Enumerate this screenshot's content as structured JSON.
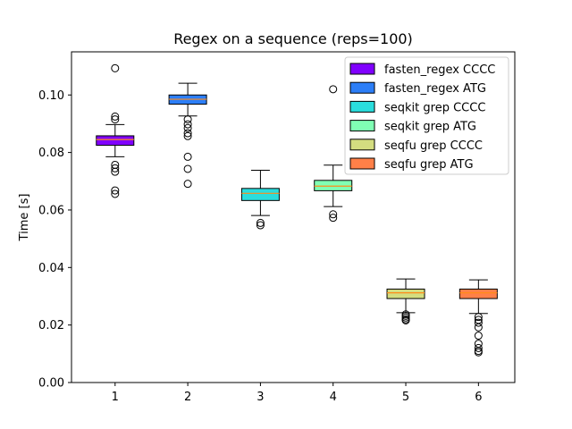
{
  "chart_data": {
    "type": "box",
    "title": "Regex on a sequence (reps=100)",
    "xlabel": "",
    "ylabel": "Time [s]",
    "ylim": [
      0,
      0.115
    ],
    "xlim": [
      0.4,
      6.5
    ],
    "x_ticks": [
      "1",
      "2",
      "3",
      "4",
      "5",
      "6"
    ],
    "y_ticks": [
      "0.00",
      "0.02",
      "0.04",
      "0.06",
      "0.08",
      "0.10"
    ],
    "y_tick_values": [
      0,
      0.02,
      0.04,
      0.06,
      0.08,
      0.1
    ],
    "legend_position": "top-right",
    "series": [
      {
        "name": "fasten_regex CCCC",
        "x": 1,
        "color": "#8000ff",
        "median": 0.0845,
        "q1": 0.0825,
        "q3": 0.0858,
        "whisker_low": 0.0785,
        "whisker_high": 0.0897,
        "outliers": [
          0.1093,
          0.0925,
          0.0915,
          0.0757,
          0.0745,
          0.0733,
          0.0668,
          0.0656
        ]
      },
      {
        "name": "fasten_regex ATG",
        "x": 2,
        "color": "#2c7ef7",
        "median": 0.0985,
        "q1": 0.0968,
        "q3": 0.1,
        "whisker_low": 0.0927,
        "whisker_high": 0.1041,
        "outliers": [
          0.0915,
          0.0898,
          0.0885,
          0.0867,
          0.0857,
          0.0785,
          0.0743,
          0.0691
        ]
      },
      {
        "name": "seqkit grep CCCC",
        "x": 3,
        "color": "#2adddd",
        "median": 0.0658,
        "q1": 0.0633,
        "q3": 0.0675,
        "whisker_low": 0.0581,
        "whisker_high": 0.0738,
        "outliers": [
          0.0555,
          0.0547
        ]
      },
      {
        "name": "seqkit grep ATG",
        "x": 4,
        "color": "#80ffb4",
        "median": 0.0683,
        "q1": 0.0667,
        "q3": 0.0703,
        "whisker_low": 0.0612,
        "whisker_high": 0.0756,
        "outliers": [
          0.102,
          0.0585,
          0.0573
        ]
      },
      {
        "name": "seqfu grep CCCC",
        "x": 5,
        "color": "#d4dd80",
        "median": 0.0312,
        "q1": 0.0292,
        "q3": 0.0325,
        "whisker_low": 0.0243,
        "whisker_high": 0.036,
        "outliers": [
          0.0237,
          0.0232,
          0.0226,
          0.022,
          0.0216
        ]
      },
      {
        "name": "seqfu grep ATG",
        "x": 6,
        "color": "#ff8048",
        "median": 0.0312,
        "q1": 0.0292,
        "q3": 0.0325,
        "whisker_low": 0.024,
        "whisker_high": 0.0357,
        "outliers": [
          0.0228,
          0.0218,
          0.0208,
          0.0192,
          0.0163,
          0.0135,
          0.012,
          0.011,
          0.0105
        ]
      }
    ]
  }
}
